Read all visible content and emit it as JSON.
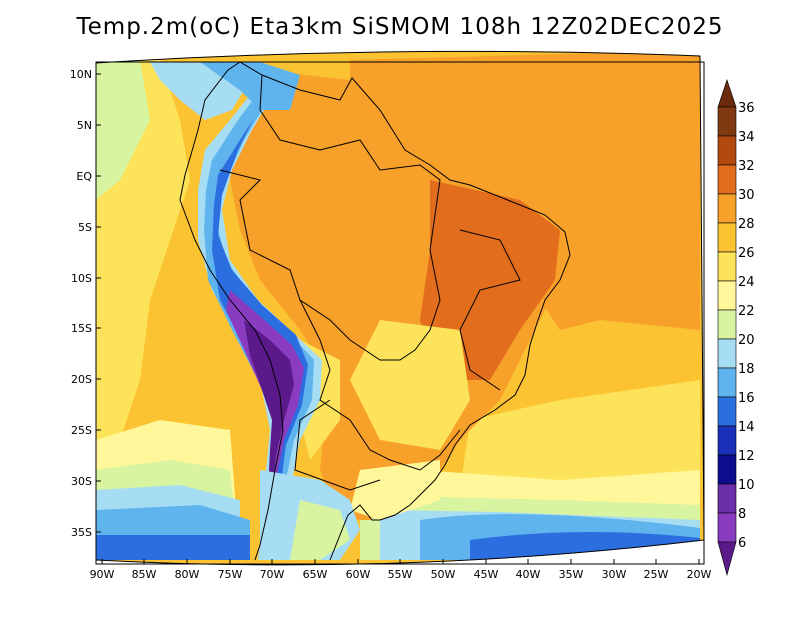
{
  "title": "Temp.2m(oC) Eta3km SiSMOM 108h 12Z02DEC2025",
  "map": {
    "variable": "2 m air temperature",
    "unit": "oC",
    "lat_labels": [
      "10N",
      "5N",
      "EQ",
      "5S",
      "10S",
      "15S",
      "20S",
      "25S",
      "30S",
      "35S"
    ],
    "lon_labels": [
      "90W",
      "85W",
      "80W",
      "75W",
      "70W",
      "65W",
      "60W",
      "55W",
      "50W",
      "45W",
      "40W",
      "35W",
      "30W",
      "25W",
      "20W"
    ]
  },
  "colorbar": {
    "labels": [
      "36",
      "34",
      "32",
      "30",
      "28",
      "26",
      "24",
      "22",
      "20",
      "18",
      "16",
      "14",
      "12",
      "10",
      "8",
      "6"
    ],
    "colors": {
      "gt36": "#6b2a0c",
      "34_36": "#7f3a12",
      "32_34": "#b24a10",
      "30_32": "#e26d1c",
      "28_30": "#f7a02a",
      "26_28": "#fbc331",
      "24_26": "#fde35a",
      "22_24": "#fff79a",
      "20_22": "#d8f4a0",
      "18_20": "#a6ddf3",
      "16_18": "#5fb4ee",
      "14_16": "#2b6ee0",
      "12_14": "#1a30b8",
      "10_12": "#0d0d8f",
      "8_10": "#6a2ea8",
      "6_8": "#8a3cc0",
      "lt6": "#5a1a8a"
    }
  }
}
